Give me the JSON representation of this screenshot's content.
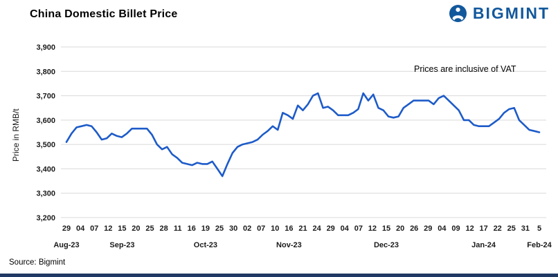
{
  "header": {
    "brand": "BIGMINT"
  },
  "chart_data": {
    "type": "line",
    "title": "China Domestic Billet Price",
    "ylabel": "Price in RMB/t",
    "ylim": [
      3200,
      3900
    ],
    "yticks": [
      3200,
      3300,
      3400,
      3500,
      3600,
      3700,
      3800,
      3900
    ],
    "grid": "horizontal",
    "legend": "none",
    "annotation": "Prices are inclusive of VAT",
    "line_color": "#1d5bc9",
    "x_day_ticks": [
      "29",
      "04",
      "07",
      "12",
      "15",
      "20",
      "25",
      "28",
      "11",
      "16",
      "19",
      "25",
      "30",
      "02",
      "07",
      "10",
      "16",
      "21",
      "24",
      "29",
      "04",
      "07",
      "12",
      "15",
      "20",
      "26",
      "29",
      "04",
      "09",
      "12",
      "17",
      "22",
      "25",
      "31",
      "5"
    ],
    "months": [
      {
        "label": "Aug-23",
        "center": 0
      },
      {
        "label": "Sep-23",
        "center": 4
      },
      {
        "label": "Oct-23",
        "center": 10
      },
      {
        "label": "Nov-23",
        "center": 16
      },
      {
        "label": "Dec-23",
        "center": 23
      },
      {
        "label": "Jan-24",
        "center": 30
      },
      {
        "label": "Feb-24",
        "center": 34
      }
    ],
    "values": [
      3510,
      3545,
      3570,
      3575,
      3580,
      3575,
      3550,
      3520,
      3525,
      3545,
      3535,
      3530,
      3545,
      3565,
      3565,
      3565,
      3565,
      3540,
      3500,
      3480,
      3490,
      3460,
      3445,
      3425,
      3420,
      3415,
      3425,
      3420,
      3420,
      3430,
      3400,
      3370,
      3420,
      3465,
      3490,
      3500,
      3505,
      3510,
      3520,
      3540,
      3555,
      3575,
      3560,
      3630,
      3620,
      3605,
      3660,
      3640,
      3665,
      3700,
      3710,
      3650,
      3655,
      3640,
      3620,
      3620,
      3620,
      3630,
      3645,
      3710,
      3680,
      3705,
      3650,
      3640,
      3615,
      3610,
      3615,
      3650,
      3665,
      3680,
      3680,
      3680,
      3680,
      3665,
      3690,
      3700,
      3680,
      3660,
      3640,
      3600,
      3600,
      3580,
      3575,
      3575,
      3575,
      3590,
      3605,
      3630,
      3645,
      3650,
      3600,
      3580,
      3560,
      3555,
      3550
    ]
  },
  "footer": {
    "source": "Source: Bigmint"
  },
  "colors": {
    "brand_blue": "#12589c",
    "bottom_bar": "#1f3864",
    "gridline": "#d9d9d9",
    "tick_text": "#1a1a1a"
  }
}
